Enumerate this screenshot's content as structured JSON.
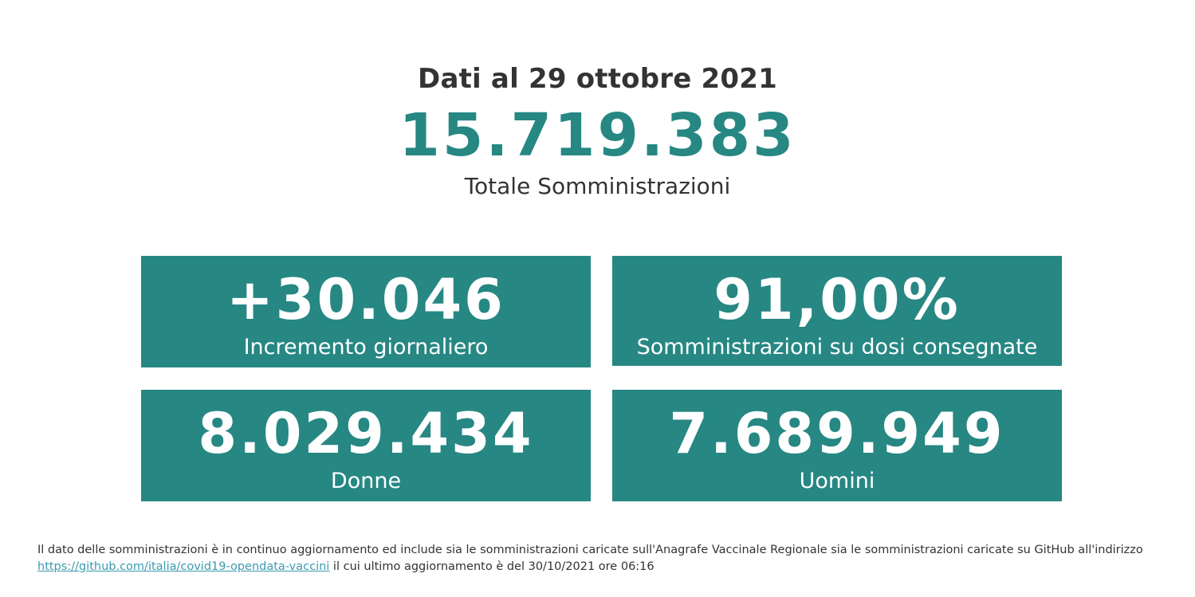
{
  "header": {
    "date_line": "Dati al 29 ottobre 2021",
    "total_value": "15.719.383",
    "total_label": "Totale Somministrazioni"
  },
  "cards": [
    {
      "value": "+30.046",
      "label": "Incremento giornaliero"
    },
    {
      "value": "91,00%",
      "label": "Somministrazioni su dosi consegnate"
    },
    {
      "value": "8.029.434",
      "label": "Donne"
    },
    {
      "value": "7.689.949",
      "label": "Uomini"
    }
  ],
  "footnote": {
    "text_before": "Il dato delle somministrazioni è in continuo aggiornamento ed include sia le somministrazioni caricate sull'Anagrafe Vaccinale Regionale sia le somministrazioni caricate su GitHub all'indirizzo",
    "link_text": "https://github.com/italia/covid19-opendata-vaccini",
    "text_after": " il cui ultimo aggiornamento è del 30/10/2021 ore 06:16"
  },
  "colors": {
    "accent": "#268783",
    "text": "#333333",
    "link": "#3a9ab0"
  }
}
